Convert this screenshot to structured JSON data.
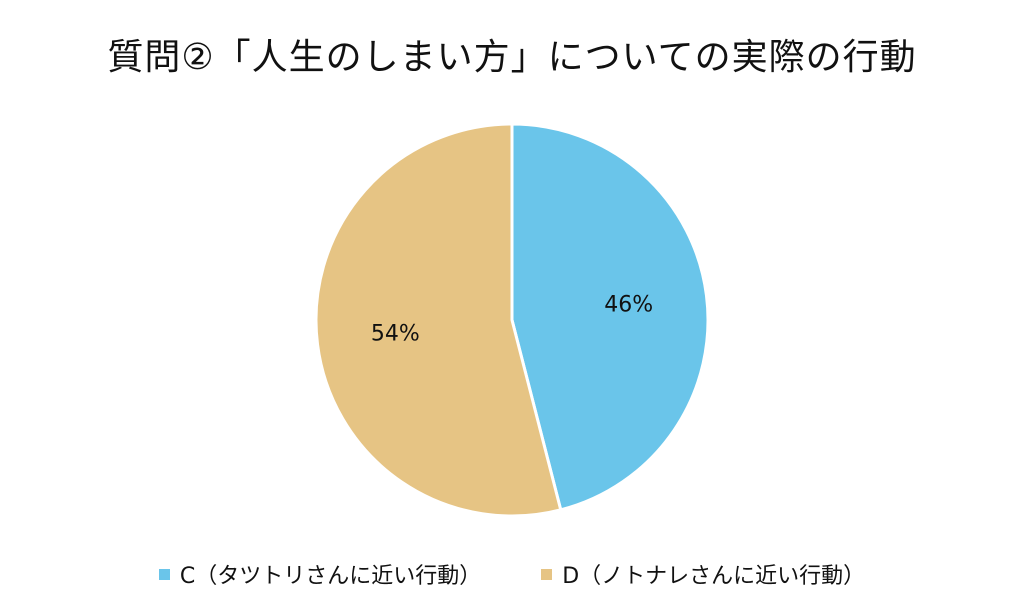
{
  "chart_data": {
    "type": "pie",
    "title": "質問②「人生のしまい方」についての実際の行動",
    "categories": [
      "C（タツトリさんに近い行動）",
      "D（ノトナレさんに近い行動）"
    ],
    "values": [
      46,
      54
    ],
    "labels": [
      "46%",
      "54%"
    ],
    "colors": [
      "#6ac5ea",
      "#e6c484"
    ],
    "legend_position": "bottom",
    "start": "12-o'clock",
    "direction": "clockwise"
  }
}
